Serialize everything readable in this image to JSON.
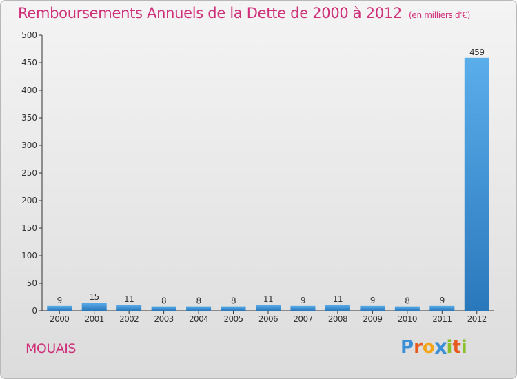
{
  "colors": {
    "title": "#d0307a",
    "bar_light": "#5aaeea",
    "bar_dark": "#2a78bc",
    "axis": "#333333",
    "grid": "#cccccc"
  },
  "chart_data": {
    "type": "bar",
    "title": "Remboursements Annuels de la Dette de 2000 à 2012",
    "subtitle": "(en milliers d'€)",
    "categories": [
      "2000",
      "2001",
      "2002",
      "2003",
      "2004",
      "2005",
      "2006",
      "2007",
      "2008",
      "2009",
      "2010",
      "2011",
      "2012"
    ],
    "values": [
      9,
      15,
      11,
      8,
      8,
      8,
      11,
      9,
      11,
      9,
      8,
      9,
      459
    ],
    "xlabel": "",
    "ylabel": "",
    "ylim": [
      0,
      500
    ],
    "yticks": [
      0,
      50,
      100,
      150,
      200,
      250,
      300,
      350,
      400,
      450,
      500
    ],
    "grid": false,
    "legend": "none"
  },
  "footer": {
    "town": "MOUAIS",
    "logo_letters": [
      {
        "ch": "P",
        "color": "#3a8fd6"
      },
      {
        "ch": "r",
        "color": "#e8591e"
      },
      {
        "ch": "o",
        "color": "#f2a518"
      },
      {
        "ch": "x",
        "color": "#3a8fd6"
      },
      {
        "ch": "i",
        "color": "#8bbf2a"
      },
      {
        "ch": "t",
        "color": "#e8591e"
      },
      {
        "ch": "i",
        "color": "#8bbf2a"
      }
    ]
  }
}
